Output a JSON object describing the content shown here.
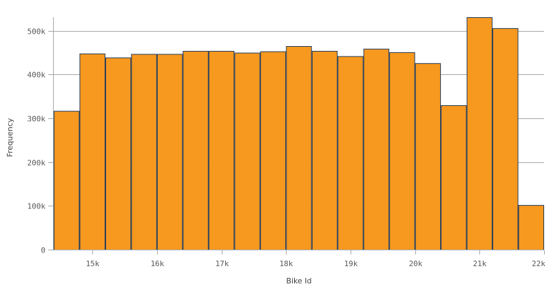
{
  "chart_data": {
    "type": "bar",
    "subtype": "histogram",
    "xlabel": "Bike Id",
    "ylabel": "Frequency",
    "bin_edges": [
      14400,
      14800,
      15200,
      15600,
      16000,
      16400,
      16800,
      17200,
      17600,
      18000,
      18400,
      18800,
      19200,
      19600,
      20000,
      20400,
      20800,
      21200,
      21600,
      22000
    ],
    "values": [
      317000,
      448000,
      439000,
      447000,
      447000,
      454000,
      454000,
      450000,
      453000,
      465000,
      454000,
      442000,
      459000,
      451000,
      426000,
      330000,
      531000,
      506000,
      102000
    ],
    "xlim": [
      14400,
      22000
    ],
    "ylim": [
      0,
      531000
    ],
    "x_ticks": [
      15000,
      16000,
      17000,
      18000,
      19000,
      20000,
      21000,
      22000
    ],
    "x_tick_labels": [
      "15k",
      "16k",
      "17k",
      "18k",
      "19k",
      "20k",
      "21k",
      "22k"
    ],
    "y_ticks": [
      0,
      100000,
      200000,
      300000,
      400000,
      500000
    ],
    "y_tick_labels": [
      "0",
      "100k",
      "200k",
      "300k",
      "400k",
      "500k"
    ],
    "grid": "horizontal",
    "legend": "none",
    "colors": {
      "bar_fill": "#f7981f",
      "bar_stroke": "#1f3a5a",
      "grid": "#a6a6a6"
    }
  }
}
